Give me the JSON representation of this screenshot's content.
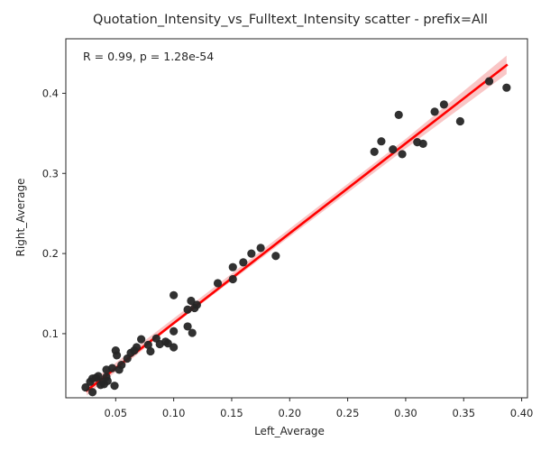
{
  "chart_data": {
    "type": "scatter",
    "title": "Quotation_Intensity_vs_Fulltext_Intensity scatter - prefix=All",
    "xlabel": "Left_Average",
    "ylabel": "Right_Average",
    "annotation": "R = 0.99, p = 1.28e-54",
    "xlim": [
      0.007,
      0.405
    ],
    "ylim": [
      0.02,
      0.468
    ],
    "xticks": [
      0.05,
      0.1,
      0.15,
      0.2,
      0.25,
      0.3,
      0.35,
      0.4
    ],
    "xtick_labels": [
      "0.05",
      "0.10",
      "0.15",
      "0.20",
      "0.25",
      "0.30",
      "0.35",
      "0.40"
    ],
    "yticks": [
      0.1,
      0.2,
      0.3,
      0.4
    ],
    "ytick_labels": [
      "0.1",
      "0.2",
      "0.3",
      "0.4"
    ],
    "grid": false,
    "colors": {
      "points": "#262626",
      "fit_line": "#ff0000",
      "ci_band": "#f7b3b3"
    },
    "fit_line": {
      "x": [
        0.025,
        0.387
      ],
      "y": [
        0.029,
        0.435
      ]
    },
    "ci_band": {
      "x": [
        0.025,
        0.1,
        0.2,
        0.3,
        0.387
      ],
      "lower": [
        0.023,
        0.111,
        0.221,
        0.331,
        0.424
      ],
      "upper": [
        0.036,
        0.119,
        0.231,
        0.343,
        0.447
      ]
    },
    "points": [
      [
        0.024,
        0.033
      ],
      [
        0.028,
        0.04
      ],
      [
        0.03,
        0.027
      ],
      [
        0.03,
        0.044
      ],
      [
        0.033,
        0.045
      ],
      [
        0.035,
        0.047
      ],
      [
        0.037,
        0.036
      ],
      [
        0.039,
        0.04
      ],
      [
        0.04,
        0.037
      ],
      [
        0.042,
        0.046
      ],
      [
        0.042,
        0.055
      ],
      [
        0.043,
        0.041
      ],
      [
        0.047,
        0.057
      ],
      [
        0.049,
        0.035
      ],
      [
        0.05,
        0.079
      ],
      [
        0.051,
        0.073
      ],
      [
        0.053,
        0.055
      ],
      [
        0.055,
        0.061
      ],
      [
        0.06,
        0.069
      ],
      [
        0.063,
        0.076
      ],
      [
        0.066,
        0.079
      ],
      [
        0.068,
        0.083
      ],
      [
        0.072,
        0.093
      ],
      [
        0.078,
        0.086
      ],
      [
        0.08,
        0.078
      ],
      [
        0.085,
        0.094
      ],
      [
        0.088,
        0.087
      ],
      [
        0.093,
        0.09
      ],
      [
        0.095,
        0.088
      ],
      [
        0.1,
        0.148
      ],
      [
        0.1,
        0.083
      ],
      [
        0.1,
        0.103
      ],
      [
        0.112,
        0.13
      ],
      [
        0.112,
        0.109
      ],
      [
        0.115,
        0.141
      ],
      [
        0.116,
        0.101
      ],
      [
        0.118,
        0.132
      ],
      [
        0.12,
        0.136
      ],
      [
        0.138,
        0.163
      ],
      [
        0.151,
        0.168
      ],
      [
        0.151,
        0.183
      ],
      [
        0.16,
        0.189
      ],
      [
        0.167,
        0.2
      ],
      [
        0.175,
        0.207
      ],
      [
        0.188,
        0.197
      ],
      [
        0.273,
        0.327
      ],
      [
        0.279,
        0.34
      ],
      [
        0.289,
        0.33
      ],
      [
        0.294,
        0.373
      ],
      [
        0.297,
        0.324
      ],
      [
        0.31,
        0.339
      ],
      [
        0.315,
        0.337
      ],
      [
        0.325,
        0.377
      ],
      [
        0.333,
        0.386
      ],
      [
        0.347,
        0.365
      ],
      [
        0.372,
        0.415
      ],
      [
        0.387,
        0.407
      ]
    ]
  }
}
